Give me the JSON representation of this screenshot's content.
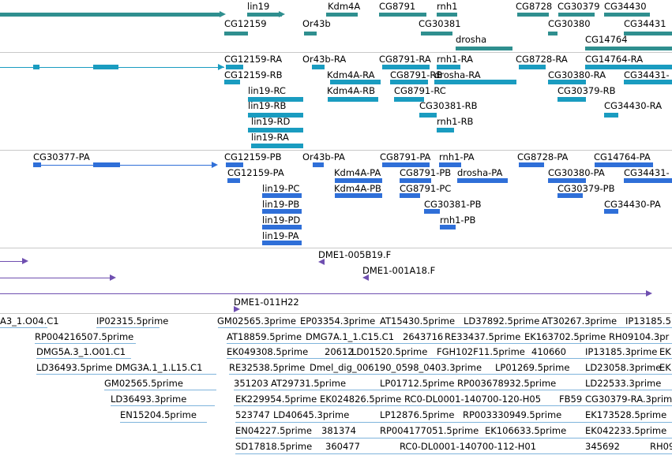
{
  "colors": {
    "gene": "#2f8f8f",
    "flybase_transcript": "#1a9cc0",
    "refseq_transcript": "#2f6fd8",
    "contig": "#6f4fb0",
    "est": "#7fb4dc",
    "divider": "#c8c8c8"
  },
  "tracks": {
    "genes": {
      "labels": [
        {
          "id": "g1",
          "text": "lin19"
        },
        {
          "id": "g2",
          "text": "Kdm4A"
        },
        {
          "id": "g3",
          "text": "CG8791"
        },
        {
          "id": "g4",
          "text": "rnh1"
        },
        {
          "id": "g5",
          "text": "CG8728"
        },
        {
          "id": "g6",
          "text": "CG30379"
        },
        {
          "id": "g7",
          "text": "CG34430"
        },
        {
          "id": "g8",
          "text": "CG12159"
        },
        {
          "id": "g9",
          "text": "Or43b"
        },
        {
          "id": "g10",
          "text": "CG30381"
        },
        {
          "id": "g11",
          "text": "CG30380"
        },
        {
          "id": "g12",
          "text": "CG34431"
        },
        {
          "id": "g13",
          "text": "drosha"
        },
        {
          "id": "g14",
          "text": "CG14764"
        }
      ]
    },
    "flybase_transcripts": {
      "labels": [
        {
          "id": "f1",
          "text": "CG12159-RA"
        },
        {
          "id": "f2",
          "text": "Or43b-RA"
        },
        {
          "id": "f3",
          "text": "CG8791-RA"
        },
        {
          "id": "f4",
          "text": "rnh1-RA"
        },
        {
          "id": "f5",
          "text": "CG8728-RA"
        },
        {
          "id": "f6",
          "text": "CG14764-RA"
        },
        {
          "id": "f7",
          "text": "CG12159-RB"
        },
        {
          "id": "f8",
          "text": "Kdm4A-RA"
        },
        {
          "id": "f9",
          "text": "CG8791-RB"
        },
        {
          "id": "f10",
          "text": "drosha-RA"
        },
        {
          "id": "f11",
          "text": "CG30380-RA"
        },
        {
          "id": "f12",
          "text": "CG34431-"
        },
        {
          "id": "f13",
          "text": "lin19-RC"
        },
        {
          "id": "f14",
          "text": "Kdm4A-RB"
        },
        {
          "id": "f15",
          "text": "CG8791-RC"
        },
        {
          "id": "f16",
          "text": "CG30379-RB"
        },
        {
          "id": "f17",
          "text": "lin19-RB"
        },
        {
          "id": "f18",
          "text": "CG30381-RB"
        },
        {
          "id": "f19",
          "text": "CG34430-RA"
        },
        {
          "id": "f20",
          "text": "lin19-RD"
        },
        {
          "id": "f21",
          "text": "rnh1-RB"
        },
        {
          "id": "f22",
          "text": "lin19-RA"
        }
      ]
    },
    "refseq_transcripts": {
      "labels": [
        {
          "id": "r1",
          "text": "CG30377-PA"
        },
        {
          "id": "r2",
          "text": "CG12159-PB"
        },
        {
          "id": "r3",
          "text": "Or43b-PA"
        },
        {
          "id": "r4",
          "text": "CG8791-PA"
        },
        {
          "id": "r5",
          "text": "rnh1-PA"
        },
        {
          "id": "r6",
          "text": "CG8728-PA"
        },
        {
          "id": "r7",
          "text": "CG14764-PA"
        },
        {
          "id": "r8",
          "text": "CG12159-PA"
        },
        {
          "id": "r9",
          "text": "Kdm4A-PA"
        },
        {
          "id": "r10",
          "text": "CG8791-PB"
        },
        {
          "id": "r11",
          "text": "drosha-PA"
        },
        {
          "id": "r12",
          "text": "CG30380-PA"
        },
        {
          "id": "r13",
          "text": "CG34431-"
        },
        {
          "id": "r14",
          "text": "lin19-PC"
        },
        {
          "id": "r15",
          "text": "Kdm4A-PB"
        },
        {
          "id": "r16",
          "text": "CG8791-PC"
        },
        {
          "id": "r17",
          "text": "CG30379-PB"
        },
        {
          "id": "r18",
          "text": "lin19-PB"
        },
        {
          "id": "r19",
          "text": "CG30381-PB"
        },
        {
          "id": "r20",
          "text": "CG34430-PA"
        },
        {
          "id": "r21",
          "text": "lin19-PD"
        },
        {
          "id": "r22",
          "text": "rnh1-PB"
        },
        {
          "id": "r23",
          "text": "lin19-PA"
        }
      ]
    },
    "contigs": {
      "labels": [
        {
          "id": "c1",
          "text": "DME1-005B19.F"
        },
        {
          "id": "c2",
          "text": "DME1-001A18.F"
        },
        {
          "id": "c3",
          "text": "DME1-011H22"
        }
      ]
    },
    "ests": {
      "labels": [
        {
          "id": "e1",
          "text": "A3_1.O04.C1"
        },
        {
          "id": "e2",
          "text": "IP02315.5prime"
        },
        {
          "id": "e3",
          "text": "GM02565.3prime"
        },
        {
          "id": "e4",
          "text": "EP03354.3prime"
        },
        {
          "id": "e5",
          "text": "AT15430.5prime"
        },
        {
          "id": "e6",
          "text": "LD37892.5prime"
        },
        {
          "id": "e7",
          "text": "AT30267.3prime"
        },
        {
          "id": "e8",
          "text": "IP13185.5"
        },
        {
          "id": "e9",
          "text": "RP004216507.5prime"
        },
        {
          "id": "e10",
          "text": "AT18859.5prime"
        },
        {
          "id": "e11",
          "text": "DMG7A.1_1.C15.C1"
        },
        {
          "id": "e12",
          "text": "2643716"
        },
        {
          "id": "e13",
          "text": "RE33437.5prime"
        },
        {
          "id": "e14",
          "text": "EK163702.5prime"
        },
        {
          "id": "e15",
          "text": "RH09104.3pr"
        },
        {
          "id": "e16",
          "text": "DMG5A.3_1.O01.C1"
        },
        {
          "id": "e17",
          "text": "EK049308.5prime"
        },
        {
          "id": "e18",
          "text": "20612"
        },
        {
          "id": "e19",
          "text": "LD01520.5prime"
        },
        {
          "id": "e20",
          "text": "FGH102F11.5prime"
        },
        {
          "id": "e21",
          "text": "410660"
        },
        {
          "id": "e22",
          "text": "IP13185.3prime"
        },
        {
          "id": "e23",
          "text": "EK"
        },
        {
          "id": "e24",
          "text": "LD36493.5prime"
        },
        {
          "id": "e25",
          "text": "DMG3A.1_1.L15.C1"
        },
        {
          "id": "e26",
          "text": "RE32538.5prime"
        },
        {
          "id": "e27",
          "text": "Dmel_dig_006190_0598_0403.3prime"
        },
        {
          "id": "e28",
          "text": "LP01269.5prime"
        },
        {
          "id": "e29",
          "text": "LD23058.3prime"
        },
        {
          "id": "e30",
          "text": "EK"
        },
        {
          "id": "e31",
          "text": "GM02565.5prime"
        },
        {
          "id": "e32",
          "text": "351203"
        },
        {
          "id": "e33",
          "text": "AT29731.5prime"
        },
        {
          "id": "e34",
          "text": "LP01712.5prime"
        },
        {
          "id": "e35",
          "text": "RP003678932.5prime"
        },
        {
          "id": "e36",
          "text": "LD22533.3prime"
        },
        {
          "id": "e37",
          "text": "LD36493.3prime"
        },
        {
          "id": "e38",
          "text": "EK229954.5prime"
        },
        {
          "id": "e39",
          "text": "EK024826.5prime"
        },
        {
          "id": "e40",
          "text": "RC0-DL0001-140700-120-H05"
        },
        {
          "id": "e41",
          "text": "FB59"
        },
        {
          "id": "e42",
          "text": "CG30379-RA.3prime"
        },
        {
          "id": "e43",
          "text": "EN15204.5prime"
        },
        {
          "id": "e44",
          "text": "523747"
        },
        {
          "id": "e45",
          "text": "LD40645.3prime"
        },
        {
          "id": "e46",
          "text": "LP12876.5prime"
        },
        {
          "id": "e47",
          "text": "RP003330949.5prime"
        },
        {
          "id": "e48",
          "text": "EK173528.5prime"
        },
        {
          "id": "e49",
          "text": "EN04227.5prime"
        },
        {
          "id": "e50",
          "text": "381374"
        },
        {
          "id": "e51",
          "text": "RP004177051.5prime"
        },
        {
          "id": "e52",
          "text": "EK106633.5prime"
        },
        {
          "id": "e53",
          "text": "EK042233.5prime"
        },
        {
          "id": "e54",
          "text": "SD17818.5prime"
        },
        {
          "id": "e55",
          "text": "360477"
        },
        {
          "id": "e56",
          "text": "RC0-DL0001-140700-112-H01"
        },
        {
          "id": "e57",
          "text": "345692"
        },
        {
          "id": "e58",
          "text": "RH09"
        }
      ]
    }
  }
}
